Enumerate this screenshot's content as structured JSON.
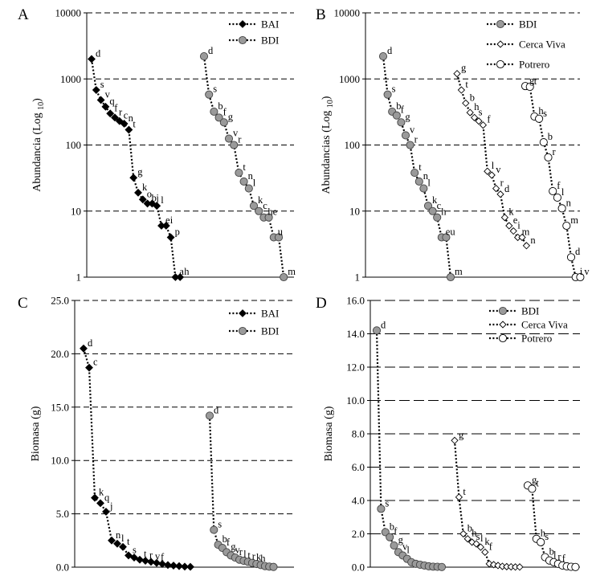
{
  "figure": {
    "description_panels": [
      "A",
      "B",
      "C",
      "D"
    ]
  },
  "chart_data": [
    {
      "panel": "A",
      "type": "line",
      "scale": "log",
      "ylabel": "Abundancia (Log 10)",
      "ylabel_parts": [
        "Abundancia (Log ",
        "10",
        ")"
      ],
      "ylim": [
        1,
        10000
      ],
      "yticks": [
        1,
        10,
        100,
        1000,
        10000
      ],
      "ytick_labels": [
        "1",
        "10",
        "100",
        "1000",
        "10000"
      ],
      "legend": [
        "BAI",
        "BDI"
      ],
      "series": [
        {
          "name": "BAI",
          "marker": "diamond-black",
          "values": [
            2000,
            680,
            480,
            380,
            300,
            260,
            230,
            210,
            170,
            32,
            19,
            15,
            13,
            13,
            12,
            6,
            6,
            4,
            1,
            1
          ],
          "labels": [
            "d",
            "s",
            "v",
            "q",
            "f",
            "r",
            "c",
            "n",
            "t",
            "g",
            "k",
            "o",
            "b",
            "j",
            "l",
            "e",
            "i",
            "p",
            "a",
            "h"
          ]
        },
        {
          "name": "BDI",
          "marker": "circle-gray",
          "values": [
            2200,
            580,
            320,
            260,
            220,
            125,
            100,
            38,
            28,
            22,
            12,
            10,
            8,
            8,
            4,
            4,
            1
          ],
          "labels": [
            "d",
            "s",
            "b",
            "f",
            "g",
            "v",
            "r",
            "t",
            "n",
            "l",
            "k",
            "c",
            "h",
            "e",
            "u",
            "",
            "m"
          ]
        }
      ]
    },
    {
      "panel": "B",
      "type": "line",
      "scale": "log",
      "ylabel": "Abundancias (Log 10)",
      "ylabel_parts": [
        "Abundancias (Log ",
        "10",
        ")"
      ],
      "ylim": [
        1,
        10000
      ],
      "yticks": [
        1,
        10,
        100,
        1000,
        10000
      ],
      "ytick_labels": [
        "1",
        "10",
        "100",
        "1000",
        "10000"
      ],
      "legend": [
        "BDI",
        "Cerca Viva",
        "Potrero"
      ],
      "series": [
        {
          "name": "BDI",
          "marker": "circle-gray",
          "values": [
            2200,
            580,
            320,
            280,
            220,
            140,
            100,
            38,
            28,
            22,
            12,
            10,
            8,
            4,
            4,
            1
          ],
          "labels": [
            "d",
            "s",
            "b",
            "f",
            "g",
            "v",
            "r",
            "t",
            "n",
            "l",
            "k",
            "c",
            "h",
            "e",
            "u",
            "m"
          ]
        },
        {
          "name": "Cerca Viva",
          "marker": "diamond-white",
          "values": [
            1200,
            680,
            430,
            310,
            260,
            230,
            200,
            40,
            35,
            22,
            18,
            8,
            6,
            5,
            4,
            4,
            3
          ],
          "labels": [
            "g",
            "t",
            "b",
            "h",
            "s",
            "",
            "f",
            "l",
            "v",
            "r",
            "d",
            "k",
            "e",
            "i",
            "m",
            "",
            "n"
          ]
        },
        {
          "name": "Potrero",
          "marker": "circle-white",
          "values": [
            780,
            760,
            270,
            250,
            110,
            65,
            20,
            16,
            11,
            6,
            2,
            1,
            1
          ],
          "labels": [
            "g",
            "t",
            "h",
            "s",
            "b",
            "r",
            "f",
            "l",
            "n",
            "m",
            "d",
            "i",
            "v"
          ]
        }
      ]
    },
    {
      "panel": "C",
      "type": "line",
      "scale": "linear",
      "ylabel": "Biomasa (g)",
      "ylim": [
        0,
        25
      ],
      "yticks": [
        0,
        5,
        10,
        15,
        20,
        25
      ],
      "ytick_labels": [
        "0.0",
        "5.0",
        "10.0",
        "15.0",
        "20.0",
        "25.0"
      ],
      "legend": [
        "BAI",
        "BDI"
      ],
      "series": [
        {
          "name": "BAI",
          "marker": "diamond-black",
          "values": [
            20.5,
            18.7,
            6.5,
            6.0,
            5.2,
            2.5,
            2.2,
            1.9,
            1.1,
            0.9,
            0.7,
            0.6,
            0.5,
            0.4,
            0.3,
            0.2,
            0.15,
            0.1,
            0.05,
            0.03
          ],
          "labels": [
            "d",
            "c",
            "k",
            "q",
            "j",
            "n",
            "l",
            "t",
            "s",
            "",
            "t",
            "r",
            "v",
            "f",
            "",
            "",
            "",
            "",
            "",
            ""
          ]
        },
        {
          "name": "BDI",
          "marker": "circle-gray",
          "values": [
            14.2,
            3.5,
            2.1,
            1.8,
            1.4,
            1.1,
            0.9,
            0.7,
            0.6,
            0.5,
            0.4,
            0.3,
            0.2,
            0.1,
            0.05,
            0.02
          ],
          "labels": [
            "d",
            "s",
            "b",
            "f",
            "g",
            "v",
            "r",
            "l",
            "t",
            "r",
            "k",
            "h",
            "",
            "",
            "",
            ""
          ]
        }
      ]
    },
    {
      "panel": "D",
      "type": "line",
      "scale": "linear",
      "ylabel": "Biomasa (g)",
      "ylim": [
        0,
        16
      ],
      "yticks": [
        0,
        2,
        4,
        6,
        8,
        10,
        12,
        14,
        16
      ],
      "ytick_labels": [
        "0.0",
        "2.0",
        "4.0",
        "6.0",
        "8.0",
        "10.0",
        "12.0",
        "14.0",
        "16.0"
      ],
      "legend": [
        "BDI",
        "Cerca Viva",
        "Potrero"
      ],
      "series": [
        {
          "name": "BDI",
          "marker": "circle-gray",
          "values": [
            14.2,
            3.5,
            2.1,
            1.8,
            1.3,
            0.9,
            0.7,
            0.5,
            0.3,
            0.2,
            0.15,
            0.1,
            0.05,
            0.03,
            0.02,
            0.01
          ],
          "labels": [
            "d",
            "s",
            "b",
            "f",
            "g",
            "v",
            "l",
            "",
            "",
            "",
            "",
            "",
            "",
            "",
            "",
            ""
          ]
        },
        {
          "name": "Cerca Viva",
          "marker": "diamond-white",
          "values": [
            7.6,
            4.2,
            2.0,
            1.7,
            1.5,
            1.4,
            1.2,
            0.9,
            0.2,
            0.15,
            0.1,
            0.05,
            0.03,
            0.02,
            0.01,
            0.01
          ],
          "labels": [
            "g",
            "t",
            "b",
            "h",
            "s",
            "l",
            "k",
            "f",
            "",
            "",
            "",
            "",
            "",
            "",
            "",
            ""
          ]
        },
        {
          "name": "Potrero",
          "marker": "circle-white",
          "values": [
            4.9,
            4.7,
            1.7,
            1.5,
            0.6,
            0.4,
            0.3,
            0.2,
            0.1,
            0.05,
            0.02,
            0.01
          ],
          "labels": [
            "g",
            "t",
            "h",
            "s",
            "b",
            "l",
            "r",
            "f",
            "",
            "",
            "",
            ""
          ]
        }
      ]
    }
  ]
}
